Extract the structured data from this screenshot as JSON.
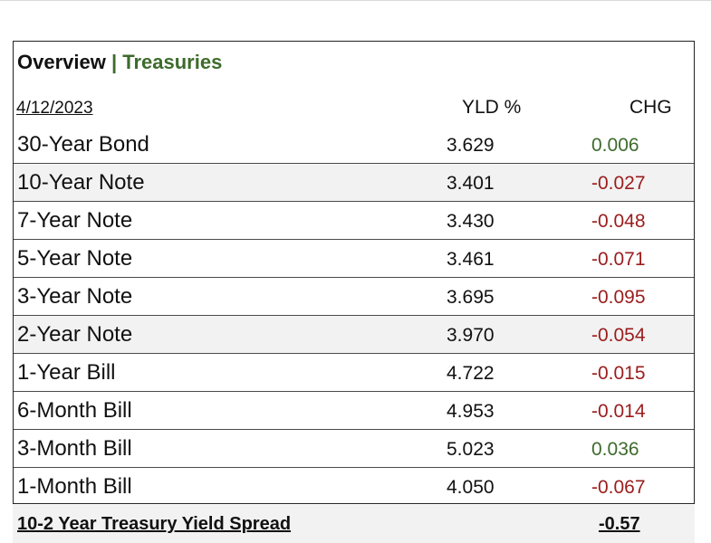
{
  "header": {
    "title": "Overview",
    "separator": "|",
    "subtitle": "Treasuries",
    "date": "4/12/2023",
    "col_yield": "YLD %",
    "col_change": "CHG"
  },
  "rows": [
    {
      "name": "30-Year Bond",
      "yield": "3.629",
      "change": "0.006",
      "direction": "up"
    },
    {
      "name": "10-Year Note",
      "yield": "3.401",
      "change": "-0.027",
      "direction": "down"
    },
    {
      "name": "7-Year Note",
      "yield": "3.430",
      "change": "-0.048",
      "direction": "down"
    },
    {
      "name": "5-Year Note",
      "yield": "3.461",
      "change": "-0.071",
      "direction": "down"
    },
    {
      "name": "3-Year Note",
      "yield": "3.695",
      "change": "-0.095",
      "direction": "down"
    },
    {
      "name": "2-Year Note",
      "yield": "3.970",
      "change": "-0.054",
      "direction": "down"
    },
    {
      "name": "1-Year Bill",
      "yield": "4.722",
      "change": "-0.015",
      "direction": "down"
    },
    {
      "name": "6-Month Bill",
      "yield": "4.953",
      "change": "-0.014",
      "direction": "down"
    },
    {
      "name": "3-Month Bill",
      "yield": "5.023",
      "change": "0.036",
      "direction": "up"
    },
    {
      "name": "1-Month Bill",
      "yield": "4.050",
      "change": "-0.067",
      "direction": "down"
    }
  ],
  "footer": {
    "label": "10-2 Year Treasury Yield Spread",
    "value": "-0.57"
  },
  "colors": {
    "positive": "#3d6b2c",
    "negative": "#9b1c1c",
    "row_shade": "#f2f2f2"
  }
}
